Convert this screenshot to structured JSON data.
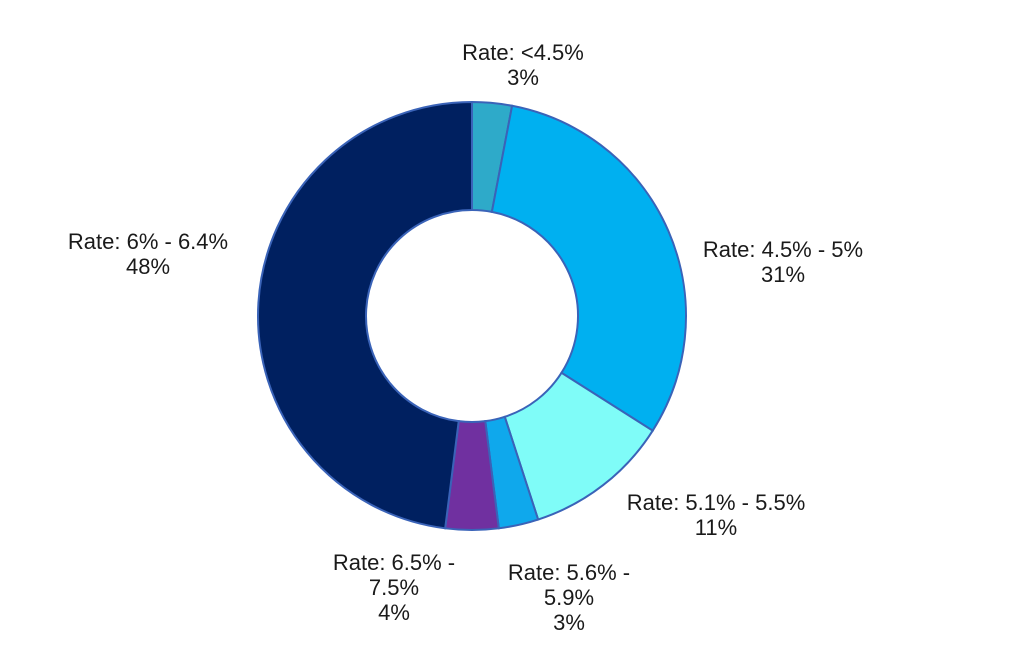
{
  "chart_data": {
    "type": "pie",
    "style": "donut",
    "categories": [
      "Rate: <4.5%",
      "Rate: 4.5% - 5%",
      "Rate: 5.1% - 5.5%",
      "Rate: 5.6% - 5.9%",
      "Rate: 6.5% - 7.5%",
      "Rate: 6% - 6.4%"
    ],
    "values": [
      3,
      31,
      11,
      3,
      4,
      48
    ],
    "value_labels": [
      "3%",
      "31%",
      "11%",
      "3%",
      "4%",
      "48%"
    ],
    "colors": [
      "#2eaac9",
      "#00b0f0",
      "#7ffcf8",
      "#0fa8ec",
      "#7030a0",
      "#002060"
    ],
    "slice_edge_color": "#3a63b8",
    "legend": "none",
    "start_angle": "top",
    "direction": "clockwise"
  }
}
